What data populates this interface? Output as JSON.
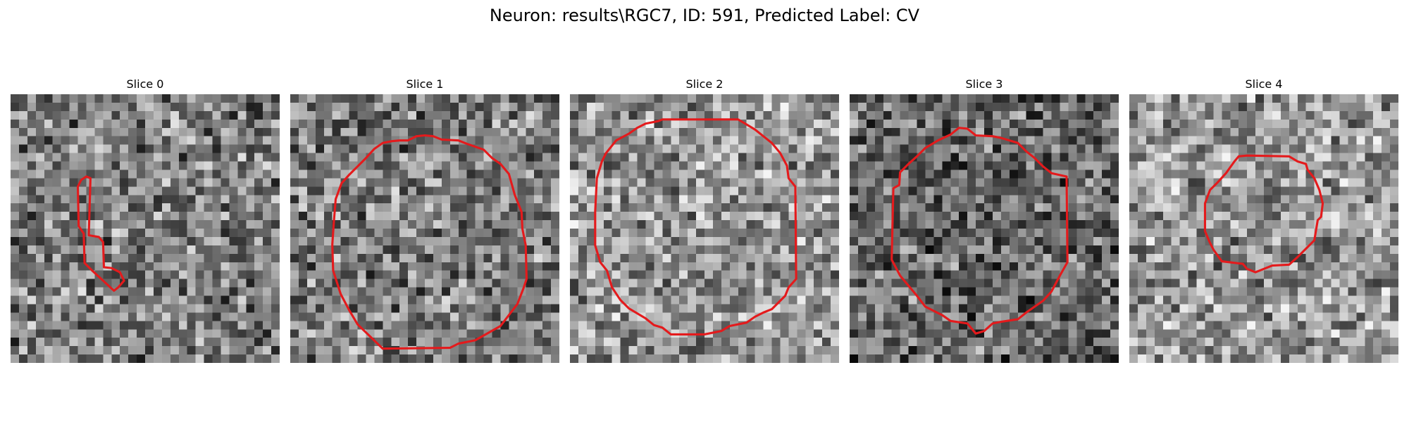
{
  "figure": {
    "title": "Neuron: results\\RGC7, ID: 591, Predicted Label: CV",
    "contour_color": "#e41a1c",
    "colormap": "gray"
  },
  "panels": [
    {
      "title": "Slice 0",
      "seed": 11,
      "tone": "mid"
    },
    {
      "title": "Slice 1",
      "seed": 23,
      "tone": "mid"
    },
    {
      "title": "Slice 2",
      "seed": 37,
      "tone": "light"
    },
    {
      "title": "Slice 3",
      "seed": 53,
      "tone": "dark"
    },
    {
      "title": "Slice 4",
      "seed": 71,
      "tone": "light"
    }
  ]
}
